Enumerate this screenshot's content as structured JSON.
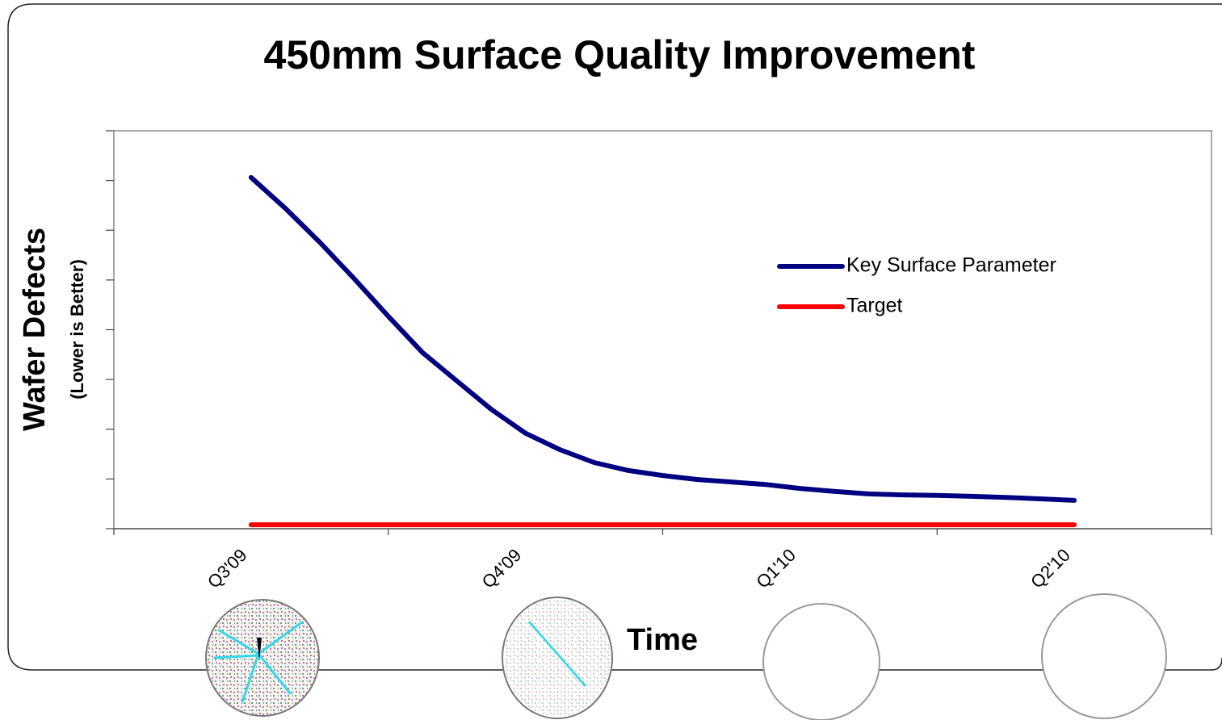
{
  "chart_data": {
    "type": "line",
    "title": "450mm Surface Quality Improvement",
    "x_label": "Time",
    "y_label": "Wafer Defects",
    "y_sublabel": "(Lower is Better)",
    "categories": [
      "Q3'09",
      null,
      null,
      null,
      null,
      null,
      null,
      null,
      "Q4'09",
      null,
      null,
      null,
      null,
      null,
      null,
      null,
      "Q1'10",
      null,
      null,
      null,
      null,
      null,
      null,
      null,
      "Q2'10"
    ],
    "series": [
      {
        "name": "Key Surface Parameter",
        "color": "#000080",
        "values": [
          7.06,
          6.44,
          5.76,
          5.03,
          4.27,
          3.54,
          2.97,
          2.4,
          1.92,
          1.59,
          1.33,
          1.17,
          1.07,
          0.99,
          0.94,
          0.89,
          0.81,
          0.75,
          0.7,
          0.68,
          0.67,
          0.65,
          0.63,
          0.6,
          0.57
        ]
      },
      {
        "name": "Target",
        "color": "#ff0000",
        "values": [
          0.08,
          0.08,
          0.08,
          0.08,
          0.08,
          0.08,
          0.08,
          0.08,
          0.08,
          0.08,
          0.08,
          0.08,
          0.08,
          0.08,
          0.08,
          0.08,
          0.08,
          0.08,
          0.08,
          0.08,
          0.08,
          0.08,
          0.08,
          0.08,
          0.08
        ]
      }
    ],
    "ylim": [
      0,
      8
    ],
    "yticks": [
      0,
      1,
      2,
      3,
      4,
      5,
      6,
      7,
      8
    ],
    "ytick_labels": false,
    "grid": false,
    "legend": "upper right"
  }
}
